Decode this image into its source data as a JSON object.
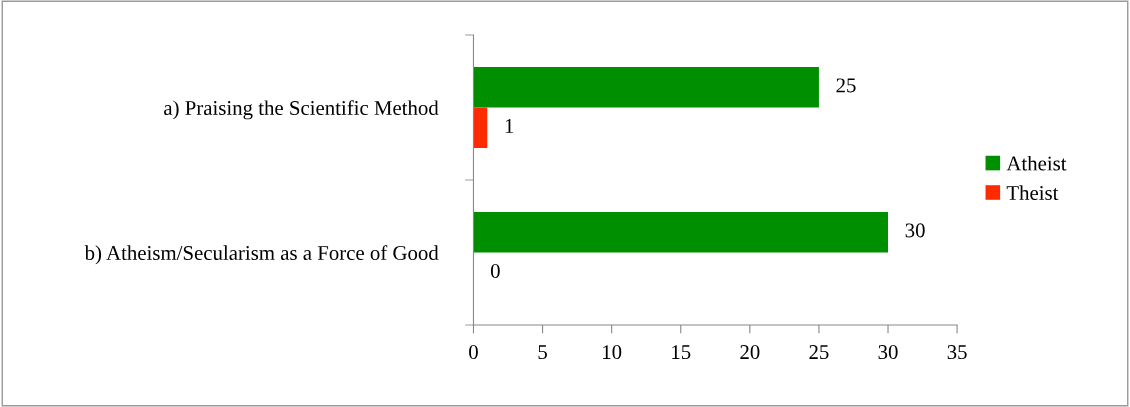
{
  "chart_data": {
    "type": "bar",
    "orientation": "horizontal",
    "categories": [
      "a) Praising the Scientific Method",
      "b) Atheism/Secularism as a Force of Good"
    ],
    "series": [
      {
        "name": "Atheist",
        "color": "#008f00",
        "values": [
          25,
          30
        ]
      },
      {
        "name": "Theist",
        "color": "#ff2b00",
        "values": [
          1,
          0
        ]
      }
    ],
    "xlim": [
      0,
      35
    ],
    "xticks": [
      0,
      5,
      10,
      15,
      20,
      25,
      30,
      35
    ],
    "data_labels": true,
    "legend": "right",
    "grid": false
  }
}
